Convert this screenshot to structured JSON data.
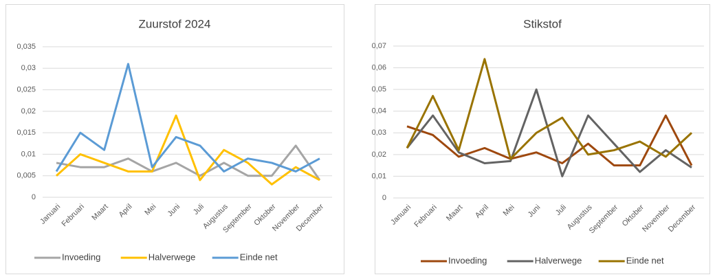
{
  "chart_data": [
    {
      "type": "line",
      "title": "Zuurstof 2024",
      "categories": [
        "Januari",
        "Februari",
        "Maart",
        "April",
        "Mei",
        "Juni",
        "Juli",
        "Augustus",
        "September",
        "Oktober",
        "November",
        "December"
      ],
      "series": [
        {
          "name": "Invoeding",
          "color": "#a5a5a5",
          "values": [
            0.008,
            0.007,
            0.007,
            0.009,
            0.006,
            0.008,
            0.005,
            0.008,
            0.005,
            0.005,
            0.012,
            0.004
          ]
        },
        {
          "name": "Halverwege",
          "color": "#ffc000",
          "values": [
            0.005,
            0.01,
            0.008,
            0.006,
            0.006,
            0.019,
            0.004,
            0.011,
            0.008,
            0.003,
            0.007,
            0.004
          ]
        },
        {
          "name": "Einde net",
          "color": "#5b9bd5",
          "values": [
            0.006,
            0.015,
            0.011,
            0.031,
            0.007,
            0.014,
            0.012,
            0.006,
            0.009,
            0.008,
            0.006,
            0.009
          ]
        }
      ],
      "ylim": [
        0,
        0.035
      ],
      "yticks": [
        0,
        {
          "value": 0.005,
          "label": "0,005"
        },
        {
          "value": 0.01,
          "label": "0,01"
        },
        {
          "value": 0.015,
          "label": "0,015"
        },
        {
          "value": 0.02,
          "label": "0,02"
        },
        {
          "value": 0.025,
          "label": "0,025"
        },
        {
          "value": 0.03,
          "label": "0,03"
        },
        {
          "value": 0.035,
          "label": "0,035"
        }
      ],
      "grid": true,
      "legend": "bottom"
    },
    {
      "type": "line",
      "title": "Stikstof",
      "categories": [
        "Januari",
        "Februari",
        "Maart",
        "April",
        "Mei",
        "Juni",
        "Juli",
        "Augustus",
        "September",
        "Oktober",
        "November",
        "December"
      ],
      "series": [
        {
          "name": "Invoeding",
          "color": "#9e480e",
          "values": [
            0.033,
            0.029,
            0.019,
            0.023,
            0.018,
            0.021,
            0.016,
            0.025,
            0.015,
            0.015,
            0.038,
            0.015
          ]
        },
        {
          "name": "Halverwege",
          "color": "#636363",
          "values": [
            0.023,
            0.038,
            0.021,
            0.016,
            0.017,
            0.05,
            0.01,
            0.038,
            0.025,
            0.012,
            0.022,
            0.014
          ]
        },
        {
          "name": "Einde net",
          "color": "#997300",
          "values": [
            0.023,
            0.047,
            0.022,
            0.064,
            0.018,
            0.03,
            0.037,
            0.02,
            0.022,
            0.026,
            0.019,
            0.03
          ]
        }
      ],
      "ylim": [
        0,
        0.07
      ],
      "yticks": [
        0,
        {
          "value": 0.01,
          "label": "0,01"
        },
        {
          "value": 0.02,
          "label": "0,02"
        },
        {
          "value": 0.03,
          "label": "0,03"
        },
        {
          "value": 0.04,
          "label": "0,04"
        },
        {
          "value": 0.05,
          "label": "0,05"
        },
        {
          "value": 0.06,
          "label": "0,06"
        },
        {
          "value": 0.07,
          "label": "0,07"
        }
      ],
      "grid": true,
      "legend": "bottom"
    }
  ]
}
